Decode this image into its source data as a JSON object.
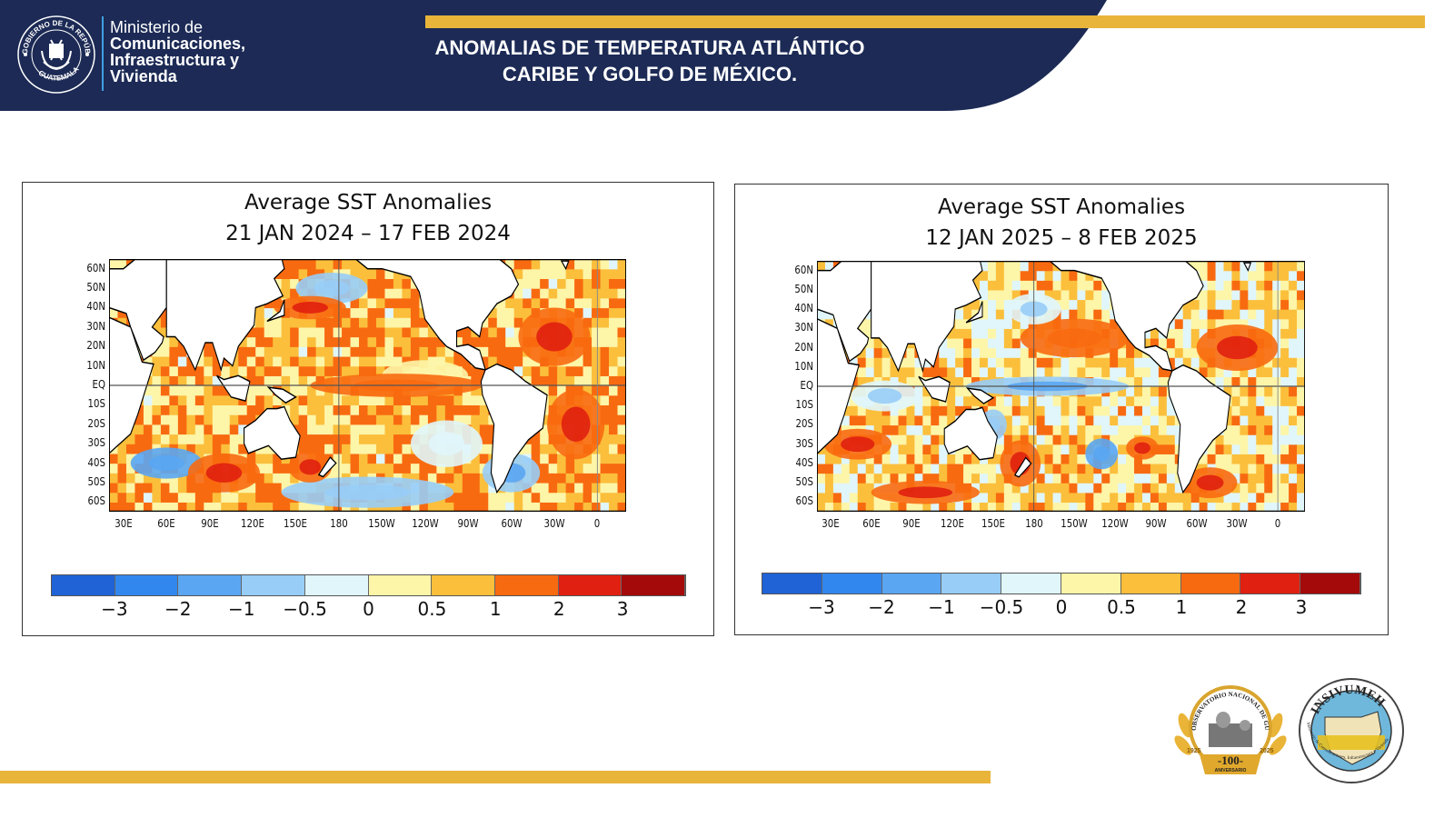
{
  "header": {
    "ministry_line1": "Ministerio de",
    "ministry_line2": "Comunicaciones,",
    "ministry_line3": "Infraestructura y",
    "ministry_line4": "Vivienda",
    "seal_text_top": "GOBIERNO DE LA REPÚBLICA",
    "seal_text_bottom": "GUATEMALA",
    "title_line1": "ANOMALIAS DE TEMPERATURA ATLÁNTICO",
    "title_line2": "CARIBE Y GOLFO DE MÉXICO."
  },
  "colors": {
    "navy": "#1c2a55",
    "gold": "#e8b43a"
  },
  "maps": [
    {
      "title": "Average SST Anomalies",
      "period": "21 JAN 2024 – 17 FEB 2024",
      "warm_bias": 0.75
    },
    {
      "title": "Average SST Anomalies",
      "period": "12 JAN 2025 – 8 FEB 2025",
      "warm_bias": 0.45
    }
  ],
  "lat_ticks": [
    "60N",
    "50N",
    "40N",
    "30N",
    "20N",
    "10N",
    "EQ",
    "10S",
    "20S",
    "30S",
    "40S",
    "50S",
    "60S"
  ],
  "lon_ticks": [
    "30E",
    "60E",
    "90E",
    "120E",
    "150E",
    "180",
    "150W",
    "120W",
    "90W",
    "60W",
    "30W",
    "0"
  ],
  "colorbar": {
    "colors": [
      "#1f63d6",
      "#3287ee",
      "#5aa6f2",
      "#98cdf7",
      "#e0f6fb",
      "#fdf5a8",
      "#fbbf3c",
      "#f86a10",
      "#e02010",
      "#a50a0a"
    ],
    "labels": [
      "−3",
      "−2",
      "−1",
      "−0.5",
      "0",
      "0.5",
      "1",
      "2",
      "3"
    ]
  },
  "logos": {
    "observatorio": {
      "ring_text": "OBSERVATORIO NACIONAL DE GUATEMALA",
      "years_left": "1925",
      "years_right": "2025",
      "badge": "-100-",
      "badge_sub": "ANIVERSARIO"
    },
    "insivumeh": {
      "name": "INSIVUMEH",
      "ring_text": "Ministerio de Comunicaciones, Infraestructura y Vivienda"
    }
  }
}
